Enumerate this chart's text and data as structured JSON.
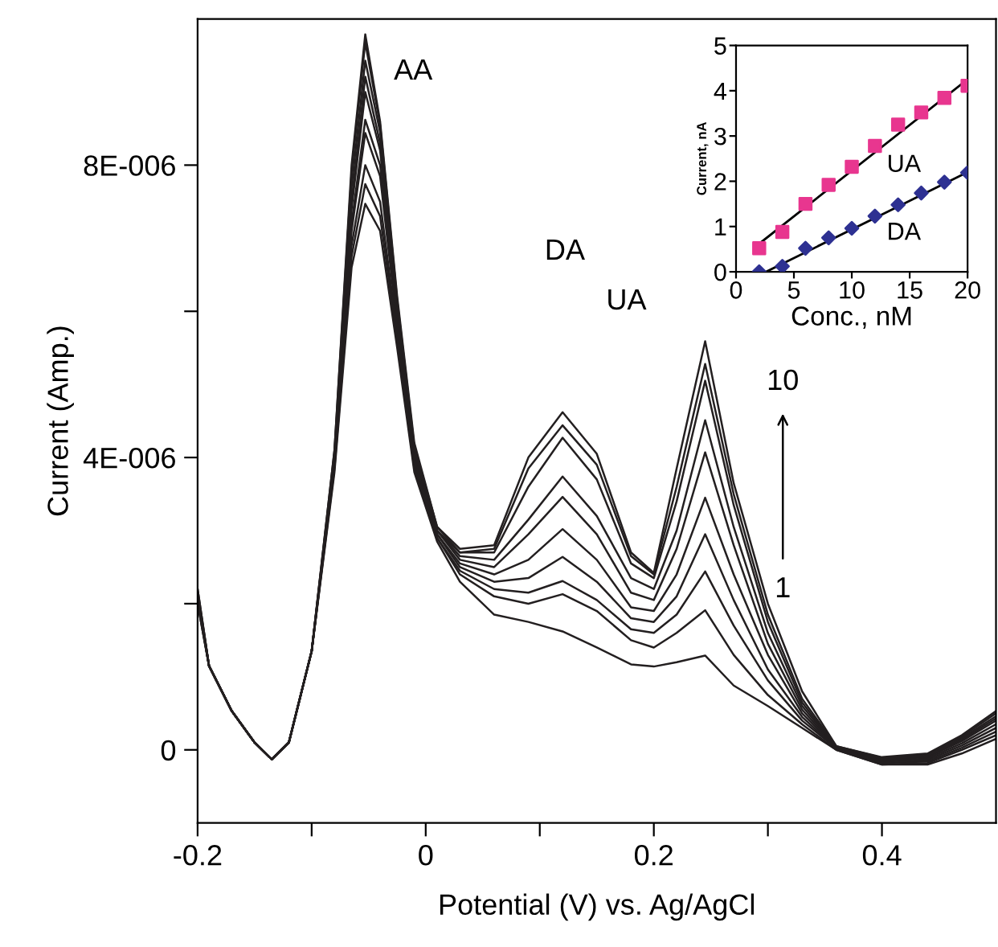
{
  "chart_data": [
    {
      "type": "line",
      "xlabel": "Potential (V) vs. Ag/AgCl",
      "ylabel": "Current (Amp.)",
      "x": [
        -0.2,
        -0.19,
        -0.17,
        -0.15,
        -0.135,
        -0.12,
        -0.1,
        -0.08,
        -0.065,
        -0.053,
        -0.04,
        -0.025,
        -0.01,
        0.01,
        0.03,
        0.06,
        0.09,
        0.12,
        0.15,
        0.18,
        0.2,
        0.22,
        0.245,
        0.27,
        0.3,
        0.33,
        0.36,
        0.4,
        0.44,
        0.47,
        0.5
      ],
      "series": [
        {
          "color": "#231f20",
          "values": [
            2.2e-06,
            1.15e-06,
            5.3e-07,
            1e-07,
            -1.3e-07,
            1e-07,
            1.35e-06,
            3.8e-06,
            6.6e-06,
            7.47e-06,
            7.1e-06,
            5.5e-06,
            3.8e-06,
            2.85e-06,
            2.3e-06,
            1.85e-06,
            1.75e-06,
            1.62e-06,
            1.4e-06,
            1.17e-06,
            1.14e-06,
            1.2e-06,
            1.29e-06,
            8.8e-07,
            6e-07,
            3e-07,
            0.0,
            -2e-07,
            -2e-07,
            -5e-08,
            1.5e-07
          ]
        },
        {
          "color": "#231f20",
          "values": [
            2.2e-06,
            1.15e-06,
            5.3e-07,
            1e-07,
            -1.3e-07,
            1e-07,
            1.35e-06,
            3.85e-06,
            6.75e-06,
            7.74e-06,
            7.3e-06,
            5.6e-06,
            3.85e-06,
            2.9e-06,
            2.4e-06,
            2.1e-06,
            2e-06,
            2.13e-06,
            1.9e-06,
            1.5e-06,
            1.4e-06,
            1.6e-06,
            1.91e-06,
            1.3e-06,
            7.5e-07,
            3.5e-07,
            0.0,
            -2e-07,
            -1.8e-07,
            0.0,
            2e-07
          ]
        },
        {
          "color": "#231f20",
          "values": [
            2.15e-06,
            1.15e-06,
            5.3e-07,
            1e-07,
            -1.3e-07,
            1e-07,
            1.35e-06,
            3.9e-06,
            6.9e-06,
            8e-06,
            7.5e-06,
            5.7e-06,
            3.9e-06,
            2.9e-06,
            2.45e-06,
            2.2e-06,
            2.15e-06,
            2.31e-06,
            2.05e-06,
            1.65e-06,
            1.6e-06,
            1.85e-06,
            2.44e-06,
            1.7e-06,
            9.5e-07,
            4e-07,
            2e-08,
            -1.8e-07,
            -1.6e-07,
            3e-08,
            2.5e-07
          ]
        },
        {
          "color": "#231f20",
          "values": [
            2.15e-06,
            1.15e-06,
            5.3e-07,
            1e-07,
            -1.3e-07,
            1e-07,
            1.35e-06,
            3.9e-06,
            7.1e-06,
            8.44e-06,
            7.85e-06,
            5.8e-06,
            3.95e-06,
            2.95e-06,
            2.5e-06,
            2.3e-06,
            2.35e-06,
            2.64e-06,
            2.3e-06,
            1.8e-06,
            1.75e-06,
            2.1e-06,
            2.95e-06,
            2.05e-06,
            1.1e-06,
            4.5e-07,
            2e-08,
            -1.7e-07,
            -1.4e-07,
            6e-08,
            3e-07
          ]
        },
        {
          "color": "#231f20",
          "values": [
            2.1e-06,
            1.15e-06,
            5.3e-07,
            1e-07,
            -1.3e-07,
            1e-07,
            1.35e-06,
            3.95e-06,
            7.2e-06,
            8.62e-06,
            8e-06,
            5.85e-06,
            4e-06,
            2.95e-06,
            2.55e-06,
            2.4e-06,
            2.6e-06,
            3.02e-06,
            2.6e-06,
            1.95e-06,
            1.9e-06,
            2.4e-06,
            3.45e-06,
            2.4e-06,
            1.3e-06,
            5e-07,
            3e-08,
            -1.5e-07,
            -1.2e-07,
            9e-08,
            3.5e-07
          ]
        },
        {
          "color": "#231f20",
          "values": [
            2.1e-06,
            1.15e-06,
            5.3e-07,
            1e-07,
            -1.3e-07,
            1e-07,
            1.35e-06,
            4e-06,
            7.4e-06,
            9e-06,
            8.2e-06,
            5.95e-06,
            4.05e-06,
            3e-06,
            2.6e-06,
            2.5e-06,
            2.95e-06,
            3.46e-06,
            2.95e-06,
            2.15e-06,
            2.05e-06,
            2.75e-06,
            4.07e-06,
            2.8e-06,
            1.45e-06,
            5.5e-07,
            3e-08,
            -1.4e-07,
            -1e-07,
            1.2e-07,
            4e-07
          ]
        },
        {
          "color": "#231f20",
          "values": [
            2.05e-06,
            1.15e-06,
            5.3e-07,
            1e-07,
            -1.3e-07,
            1e-07,
            1.35e-06,
            4e-06,
            7.5e-06,
            9.21e-06,
            8.3e-06,
            6e-06,
            4.1e-06,
            3e-06,
            2.65e-06,
            2.6e-06,
            3.15e-06,
            3.74e-06,
            3.2e-06,
            2.35e-06,
            2.2e-06,
            3e-06,
            4.51e-06,
            3.05e-06,
            1.6e-06,
            6e-07,
            4e-08,
            -1.3e-07,
            -9e-08,
            1.4e-07,
            4.3e-07
          ]
        },
        {
          "color": "#231f20",
          "values": [
            2.05e-06,
            1.15e-06,
            5.3e-07,
            1e-07,
            -1.3e-07,
            1e-07,
            1.35e-06,
            4.05e-06,
            7.7e-06,
            9.43e-06,
            8.45e-06,
            6.1e-06,
            4.1e-06,
            3e-06,
            2.7e-06,
            2.7e-06,
            3.6e-06,
            4.27e-06,
            3.7e-06,
            2.55e-06,
            2.35e-06,
            3.4e-06,
            5.05e-06,
            3.35e-06,
            1.75e-06,
            6.5e-07,
            4e-08,
            -1.2e-07,
            -8e-08,
            1.6e-07,
            4.6e-07
          ]
        },
        {
          "color": "#231f20",
          "values": [
            2e-06,
            1.15e-06,
            5.3e-07,
            1e-07,
            -1.3e-07,
            1e-07,
            1.35e-06,
            4.1e-06,
            7.9e-06,
            9.68e-06,
            8.55e-06,
            6.15e-06,
            4.15e-06,
            3.05e-06,
            2.7e-06,
            2.75e-06,
            3.85e-06,
            4.44e-06,
            3.9e-06,
            2.65e-06,
            2.4e-06,
            3.6e-06,
            5.28e-06,
            3.5e-06,
            1.85e-06,
            7e-07,
            5e-08,
            -1.1e-07,
            -6e-08,
            1.8e-07,
            5e-07
          ]
        },
        {
          "color": "#231f20",
          "values": [
            2e-06,
            1.15e-06,
            5.3e-07,
            1e-07,
            -1.3e-07,
            1e-07,
            1.35e-06,
            4.1e-06,
            8e-06,
            9.79e-06,
            8.6e-06,
            6.2e-06,
            4.2e-06,
            3.05e-06,
            2.75e-06,
            2.8e-06,
            4e-06,
            4.62e-06,
            4.05e-06,
            2.7e-06,
            2.42e-06,
            3.85e-06,
            5.59e-06,
            3.65e-06,
            2e-06,
            8e-07,
            5e-08,
            -1e-07,
            -5e-08,
            2e-07,
            5.3e-07
          ]
        }
      ],
      "xlim": [
        -0.2,
        0.5
      ],
      "xticks": [
        {
          "value": -0.2,
          "label": "-0.2"
        },
        {
          "value": -0.1,
          "label": null
        },
        0,
        {
          "value": 0.1,
          "label": null
        },
        0.2,
        {
          "value": 0.3,
          "label": null
        },
        0.4
      ],
      "ylim": [
        -1e-06,
        1e-05
      ],
      "yticks": [
        {
          "value": 0,
          "label": "0"
        },
        {
          "value": 2e-06,
          "label": null
        },
        {
          "value": 4e-06,
          "label": "4E-006"
        },
        {
          "value": 6e-06,
          "label": null
        },
        {
          "value": 8e-06,
          "label": "8E-006"
        }
      ],
      "annotations": [
        "AA",
        "DA",
        "UA",
        "10",
        "1"
      ],
      "grid": false,
      "legend": false
    },
    {
      "type": "scatter",
      "xlabel": "Conc., nM",
      "ylabel": "Current, nA",
      "x": [
        2,
        4,
        6,
        8,
        10,
        12,
        14,
        16,
        18,
        20
      ],
      "series": [
        {
          "color": "#e8368f",
          "marker": "square",
          "values": [
            0.52,
            0.88,
            1.5,
            1.92,
            2.32,
            2.78,
            3.25,
            3.52,
            3.84,
            4.11
          ]
        },
        {
          "color": "#2e3192",
          "marker": "diamond",
          "values": [
            0.0,
            0.12,
            0.52,
            0.75,
            0.96,
            1.23,
            1.48,
            1.74,
            1.98,
            2.19
          ]
        },
        {
          "type": "line",
          "color": "#000000",
          "x": [
            2,
            20
          ],
          "values": [
            0.62,
            4.25
          ]
        },
        {
          "type": "line",
          "color": "#000000",
          "x": [
            2.6,
            20
          ],
          "values": [
            0.0,
            2.2
          ]
        }
      ],
      "xlim": [
        0,
        20
      ],
      "xticks": [
        0,
        5,
        10,
        15,
        20
      ],
      "ylim": [
        0,
        5
      ],
      "yticks": [
        0,
        1,
        2,
        3,
        4,
        5
      ],
      "annotations": [
        "UA",
        "DA"
      ],
      "grid": false,
      "legend": false
    }
  ]
}
